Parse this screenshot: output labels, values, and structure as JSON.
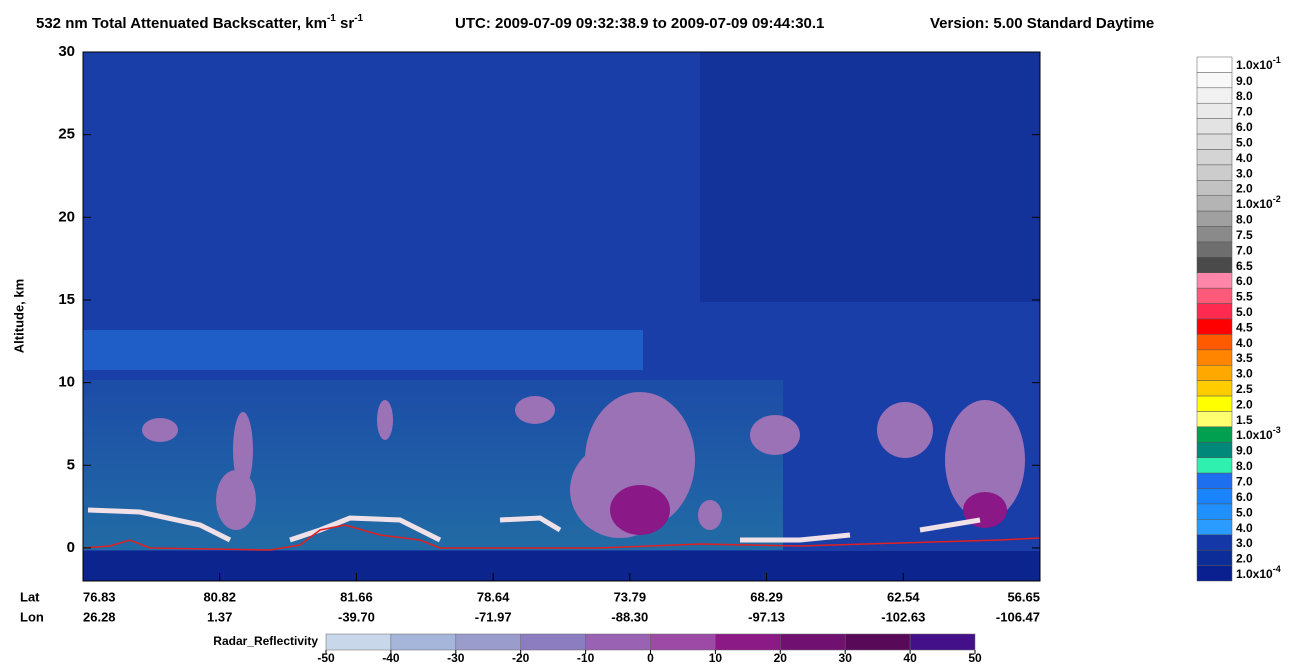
{
  "chart_data": {
    "type": "curtain",
    "title_parts": [
      "532 nm Total Attenuated Backscatter, km",
      "-1",
      " sr",
      "-1"
    ],
    "utc": "UTC:  2009-07-09 09:32:38.9  to  2009-07-09 09:44:30.1",
    "version": "Version: 5.00  Standard  Daytime",
    "ylabel": "Altitude, km",
    "ylim": [
      -2,
      30
    ],
    "yticks": [
      0,
      5,
      10,
      15,
      20,
      25,
      30
    ],
    "lat_label": "Lat",
    "lon_label": "Lon",
    "lat": [
      "76.83",
      "80.82",
      "81.66",
      "78.64",
      "73.79",
      "68.29",
      "62.54",
      "56.65"
    ],
    "lon": [
      "26.28",
      "1.37",
      "-39.70",
      "-71.97",
      "-88.30",
      "-97.13",
      "-102.63",
      "-106.47"
    ],
    "colorbar": {
      "labels": [
        {
          "text": "1.0x10",
          "sup": "-1"
        },
        "9.0",
        "8.0",
        "7.0",
        "6.0",
        "5.0",
        "4.0",
        "3.0",
        "2.0",
        {
          "text": "1.0x10",
          "sup": "-2"
        },
        "8.0",
        "7.5",
        "7.0",
        "6.5",
        "6.0",
        "5.5",
        "5.0",
        "4.5",
        "4.0",
        "3.5",
        "3.0",
        "2.5",
        "2.0",
        "1.5",
        {
          "text": "1.0x10",
          "sup": "-3"
        },
        "9.0",
        "8.0",
        "7.0",
        "6.0",
        "5.0",
        "4.0",
        "3.0",
        "2.0",
        {
          "text": "1.0x10",
          "sup": "-4"
        }
      ],
      "colors": [
        "#ffffff",
        "#f8f8f8",
        "#f1f1f1",
        "#eaeaea",
        "#e3e3e3",
        "#dcdcdc",
        "#d4d4d4",
        "#cccccc",
        "#c2c2c2",
        "#b4b4b4",
        "#a0a0a0",
        "#8a8a8a",
        "#6e6e6e",
        "#4a4a4a",
        "#ff86a8",
        "#ff5a7a",
        "#ff2a50",
        "#ff0000",
        "#ff5a00",
        "#ff8400",
        "#ffa800",
        "#ffcc00",
        "#ffff00",
        "#ffff70",
        "#00a050",
        "#00887a",
        "#30f0b0",
        "#1e6ef0",
        "#1a84ff",
        "#2090ff",
        "#2a9cff",
        "#1438a8",
        "#0c2c98",
        "#0a2090"
      ]
    },
    "radar": {
      "label": "Radar_Reflectivity",
      "clim": [
        -50,
        50
      ],
      "ticks": [
        -50,
        -40,
        -30,
        -20,
        -10,
        0,
        10,
        20,
        30,
        40,
        50
      ],
      "colors": [
        "#c8d8ea",
        "#a6b6da",
        "#9a9ccc",
        "#8c7cc0",
        "#9a62b2",
        "#9c4aa6",
        "#8c1a86",
        "#701070",
        "#580a58",
        "#44108a"
      ]
    }
  }
}
